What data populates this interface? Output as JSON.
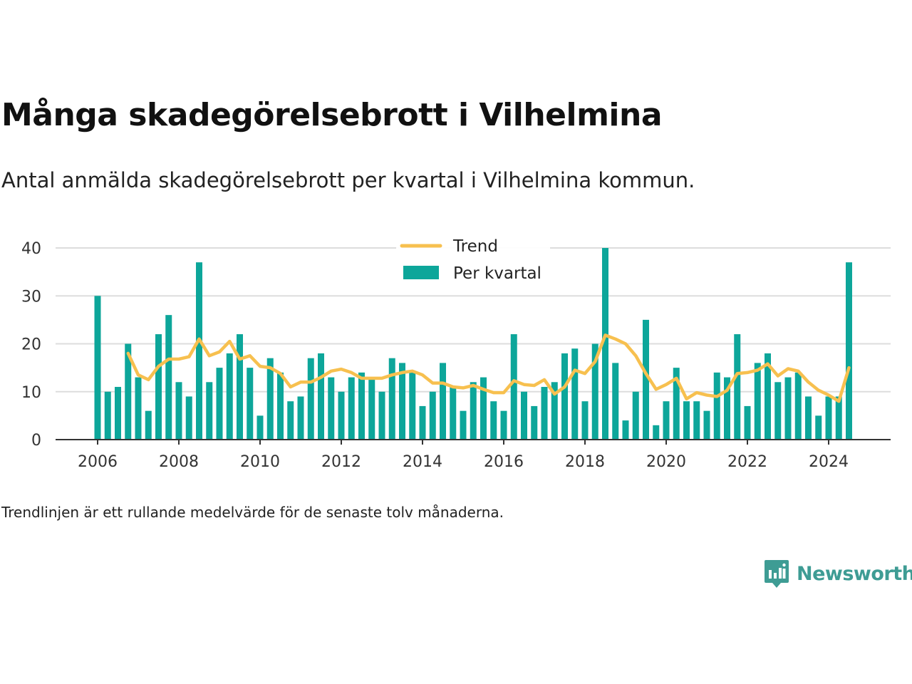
{
  "title": "Många skadegörelsebrott i Vilhelmina",
  "subtitle": "Antal anmälda skadegörelsebrott per kvartal i Vilhelmina kommun.",
  "note": "Trendlinjen är ett rullande medelvärde för de senaste tolv månaderna.",
  "brand": {
    "name": "Newsworthy",
    "icon": "newsworthy-logo-icon",
    "color": "#3e9c94"
  },
  "colors": {
    "bar": "#0da69a",
    "trend": "#f7c04f",
    "grid": "#dddddd",
    "axis": "#333333"
  },
  "chart_data": {
    "type": "bar",
    "x_tick_labels": [
      "2006",
      "2008",
      "2010",
      "2012",
      "2014",
      "2016",
      "2018",
      "2020",
      "2022",
      "2024"
    ],
    "y_ticks": [
      0,
      10,
      20,
      30,
      40
    ],
    "ylim": [
      0,
      40
    ],
    "grid": true,
    "legend": {
      "position": "top-center",
      "items": [
        "Trend",
        "Per kvartal"
      ]
    },
    "quarters": [
      "2006 Q1",
      "2006 Q2",
      "2006 Q3",
      "2006 Q4",
      "2007 Q1",
      "2007 Q2",
      "2007 Q3",
      "2007 Q4",
      "2008 Q1",
      "2008 Q2",
      "2008 Q3",
      "2008 Q4",
      "2009 Q1",
      "2009 Q2",
      "2009 Q3",
      "2009 Q4",
      "2010 Q1",
      "2010 Q2",
      "2010 Q3",
      "2010 Q4",
      "2011 Q1",
      "2011 Q2",
      "2011 Q3",
      "2011 Q4",
      "2012 Q1",
      "2012 Q2",
      "2012 Q3",
      "2012 Q4",
      "2013 Q1",
      "2013 Q2",
      "2013 Q3",
      "2013 Q4",
      "2014 Q1",
      "2014 Q2",
      "2014 Q3",
      "2014 Q4",
      "2015 Q1",
      "2015 Q2",
      "2015 Q3",
      "2015 Q4",
      "2016 Q1",
      "2016 Q2",
      "2016 Q3",
      "2016 Q4",
      "2017 Q1",
      "2017 Q2",
      "2017 Q3",
      "2017 Q4",
      "2018 Q1",
      "2018 Q2",
      "2018 Q3",
      "2018 Q4",
      "2019 Q1",
      "2019 Q2",
      "2019 Q3",
      "2019 Q4",
      "2020 Q1",
      "2020 Q2",
      "2020 Q3",
      "2020 Q4",
      "2021 Q1",
      "2021 Q2",
      "2021 Q3",
      "2021 Q4",
      "2022 Q1",
      "2022 Q2",
      "2022 Q3",
      "2022 Q4",
      "2023 Q1",
      "2023 Q2",
      "2023 Q3",
      "2023 Q4",
      "2024 Q1",
      "2024 Q2",
      "2024 Q3"
    ],
    "series": [
      {
        "name": "Per kvartal",
        "type": "bar",
        "values": [
          30,
          10,
          11,
          20,
          13,
          6,
          22,
          26,
          12,
          9,
          37,
          12,
          15,
          18,
          22,
          15,
          5,
          17,
          14,
          8,
          9,
          17,
          18,
          13,
          10,
          13,
          14,
          13,
          10,
          17,
          16,
          14,
          7,
          10,
          16,
          11,
          6,
          12,
          13,
          8,
          6,
          22,
          10,
          7,
          11,
          12,
          18,
          19,
          8,
          20,
          40,
          16,
          4,
          10,
          25,
          3,
          8,
          15,
          8,
          8,
          6,
          14,
          13,
          22,
          7,
          16,
          18,
          12,
          13,
          14,
          9,
          5,
          9,
          9,
          37
        ]
      },
      {
        "name": "Trend",
        "type": "line",
        "values": [
          null,
          null,
          null,
          18,
          13.5,
          12.5,
          15.3,
          16.8,
          16.8,
          17.3,
          21,
          17.5,
          18.3,
          20.5,
          16.8,
          17.5,
          15.3,
          15,
          13.8,
          11,
          12,
          12,
          13,
          14.3,
          14.7,
          14,
          12.8,
          12.8,
          12.8,
          13.5,
          14,
          14.3,
          13.5,
          11.8,
          11.8,
          11,
          10.8,
          11.3,
          10.5,
          9.8,
          9.8,
          12.3,
          11.5,
          11.3,
          12.5,
          9.5,
          11,
          14.5,
          13.8,
          16.3,
          21.8,
          21,
          20,
          17.5,
          13.8,
          10.5,
          11.5,
          12.8,
          8.5,
          9.8,
          9.3,
          9,
          10.3,
          13.8,
          14,
          14.5,
          15.8,
          13.3,
          14.8,
          14.3,
          12,
          10.3,
          9.3,
          8,
          15
        ]
      }
    ]
  }
}
